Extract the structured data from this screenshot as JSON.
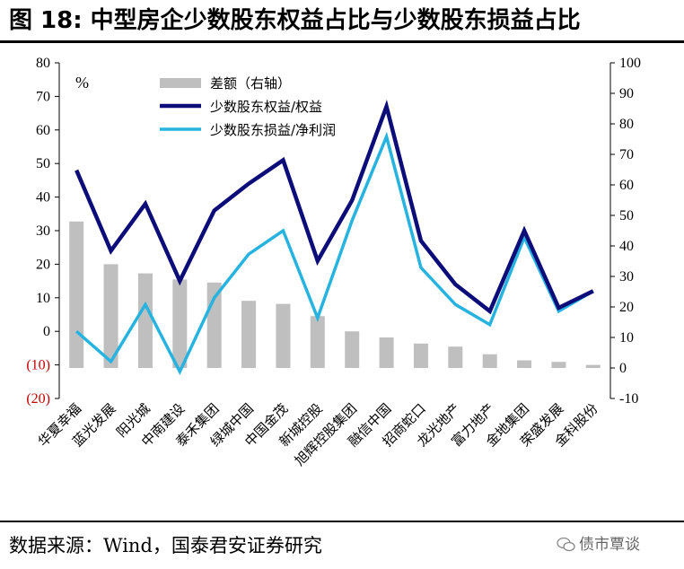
{
  "header": {
    "title": "图 18: 中型房企少数股东权益占比与少数股东损益占比"
  },
  "footer": {
    "source": "数据来源：Wind，国泰君安证券研究",
    "watermark": "债市覃谈"
  },
  "colors": {
    "bar": "#bfbfbf",
    "equity_line": "#0d0d7a",
    "profit_line": "#27b3e0",
    "negative_tick": "#c00000"
  },
  "chart_data": {
    "type": "bar+line",
    "unit_label": "%",
    "categories": [
      "华夏幸福",
      "蓝光发展",
      "阳光城",
      "中南建设",
      "泰禾集团",
      "绿城中国",
      "中国金茂",
      "新城控股",
      "旭辉控股集团",
      "融信中国",
      "招商蛇口",
      "龙光地产",
      "富力地产",
      "金地集团",
      "荣盛发展",
      "金科股份"
    ],
    "left_axis": {
      "ylim": [
        -20,
        80
      ],
      "ticks": [
        -20,
        -10,
        0,
        10,
        20,
        30,
        40,
        50,
        60,
        70,
        80
      ],
      "tick_labels": [
        "(20)",
        "(10)",
        "0",
        "10",
        "20",
        "30",
        "40",
        "50",
        "60",
        "70",
        "80"
      ]
    },
    "right_axis": {
      "ylim": [
        -10,
        100
      ],
      "ticks": [
        -10,
        0,
        10,
        20,
        30,
        40,
        50,
        60,
        70,
        80,
        90,
        100
      ],
      "tick_labels": [
        "-10",
        "0",
        "10",
        "20",
        "30",
        "40",
        "50",
        "60",
        "70",
        "80",
        "90",
        "100"
      ]
    },
    "series": [
      {
        "name": "差额（右轴）",
        "kind": "bar",
        "axis": "right",
        "values": [
          48,
          34,
          31,
          29,
          28,
          22,
          21,
          17,
          12,
          10,
          8,
          7,
          4.5,
          2.5,
          2,
          1
        ]
      },
      {
        "name": "少数股东权益/权益",
        "kind": "line",
        "axis": "left",
        "values": [
          48,
          24,
          38,
          15,
          36,
          44,
          51,
          21,
          39,
          67,
          27,
          14,
          6,
          30,
          7,
          12
        ]
      },
      {
        "name": "少数股东损益/净利润",
        "kind": "line",
        "axis": "left",
        "values": [
          0,
          -9,
          8,
          -12,
          10,
          23,
          30,
          4,
          33,
          58,
          19,
          8,
          2,
          28,
          6,
          12
        ]
      }
    ],
    "legend_position": "top-center",
    "grid": false
  }
}
